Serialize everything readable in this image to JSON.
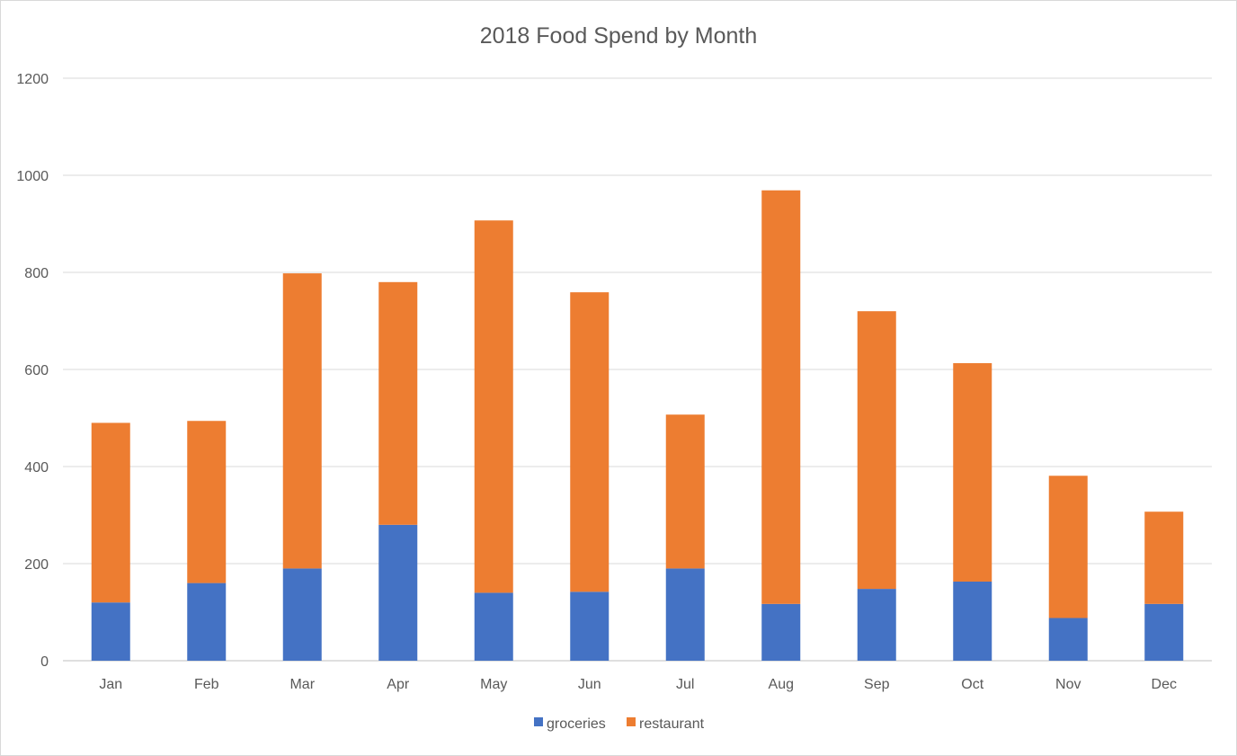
{
  "chart_data": {
    "type": "bar",
    "stacked": true,
    "title": "2018 Food Spend by Month",
    "xlabel": "",
    "ylabel": "",
    "categories": [
      "Jan",
      "Feb",
      "Mar",
      "Apr",
      "May",
      "Jun",
      "Jul",
      "Aug",
      "Sep",
      "Oct",
      "Nov",
      "Dec"
    ],
    "series": [
      {
        "name": "groceries",
        "color": "#4472C4",
        "values": [
          120,
          160,
          190,
          280,
          140,
          142,
          190,
          117,
          148,
          163,
          88,
          117
        ]
      },
      {
        "name": "restaurant",
        "color": "#ED7D31",
        "values": [
          370,
          334,
          608,
          500,
          767,
          617,
          317,
          852,
          572,
          450,
          293,
          190
        ]
      }
    ],
    "ylim": [
      0,
      1200
    ],
    "yticks": [
      0,
      200,
      400,
      600,
      800,
      1000,
      1200
    ],
    "grid": true,
    "legend": "bottom"
  }
}
